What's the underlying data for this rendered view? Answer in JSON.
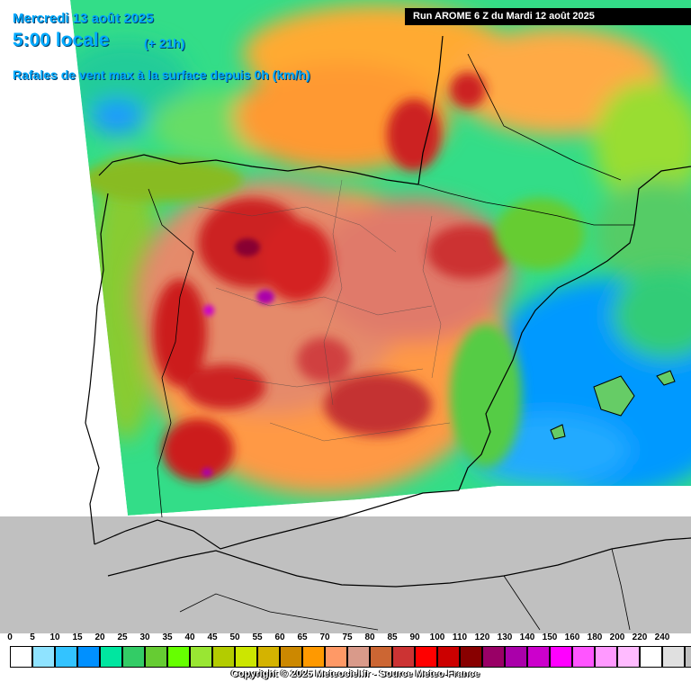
{
  "header": {
    "date": "Mercredi 13 août 2025",
    "time": "5:00 locale",
    "lead": "(+ 21h)",
    "parameter": "Rafales de vent max à la surface depuis 0h (km/h)",
    "run": "Run AROME 6 Z du Mardi 12 août 2025"
  },
  "legend": {
    "unit": "km/h",
    "steps": [
      {
        "value": "0",
        "color": "#ffffff"
      },
      {
        "value": "5",
        "color": "#8fe3ff"
      },
      {
        "value": "10",
        "color": "#33c3ff"
      },
      {
        "value": "15",
        "color": "#0090ff"
      },
      {
        "value": "20",
        "color": "#00e6a0"
      },
      {
        "value": "25",
        "color": "#33cc66"
      },
      {
        "value": "30",
        "color": "#66cc33"
      },
      {
        "value": "35",
        "color": "#66ff00"
      },
      {
        "value": "40",
        "color": "#99e633"
      },
      {
        "value": "45",
        "color": "#b3cc00"
      },
      {
        "value": "50",
        "color": "#cce600"
      },
      {
        "value": "55",
        "color": "#d4b300"
      },
      {
        "value": "60",
        "color": "#cc8800"
      },
      {
        "value": "65",
        "color": "#ff9900"
      },
      {
        "value": "70",
        "color": "#ff9966"
      },
      {
        "value": "75",
        "color": "#d99a8a"
      },
      {
        "value": "80",
        "color": "#cc6633"
      },
      {
        "value": "85",
        "color": "#cc3333"
      },
      {
        "value": "90",
        "color": "#ff0000"
      },
      {
        "value": "100",
        "color": "#cc0000"
      },
      {
        "value": "110",
        "color": "#880000"
      },
      {
        "value": "120",
        "color": "#990066"
      },
      {
        "value": "130",
        "color": "#aa00aa"
      },
      {
        "value": "140",
        "color": "#cc00cc"
      },
      {
        "value": "150",
        "color": "#ff00ff"
      },
      {
        "value": "160",
        "color": "#ff55ff"
      },
      {
        "value": "180",
        "color": "#ff99ff"
      },
      {
        "value": "200",
        "color": "#ffbbff"
      },
      {
        "value": "220",
        "color": "#ffffff"
      },
      {
        "value": "240",
        "color": "#e0e0e0"
      },
      {
        "value": "",
        "color": "#c0c0c0"
      }
    ]
  },
  "colors": {
    "title": "#00aaff",
    "outside_domain": "#c0c0c0",
    "sea_calm": "#0090ff",
    "gusts_low": "#33cc66",
    "gusts_mid": "#ff9900",
    "gusts_high": "#cc0000",
    "gusts_extreme": "#aa00aa"
  },
  "footer": {
    "copyright": "Copyright © 2025 Meteociel.fr - Source Meteo-France"
  }
}
